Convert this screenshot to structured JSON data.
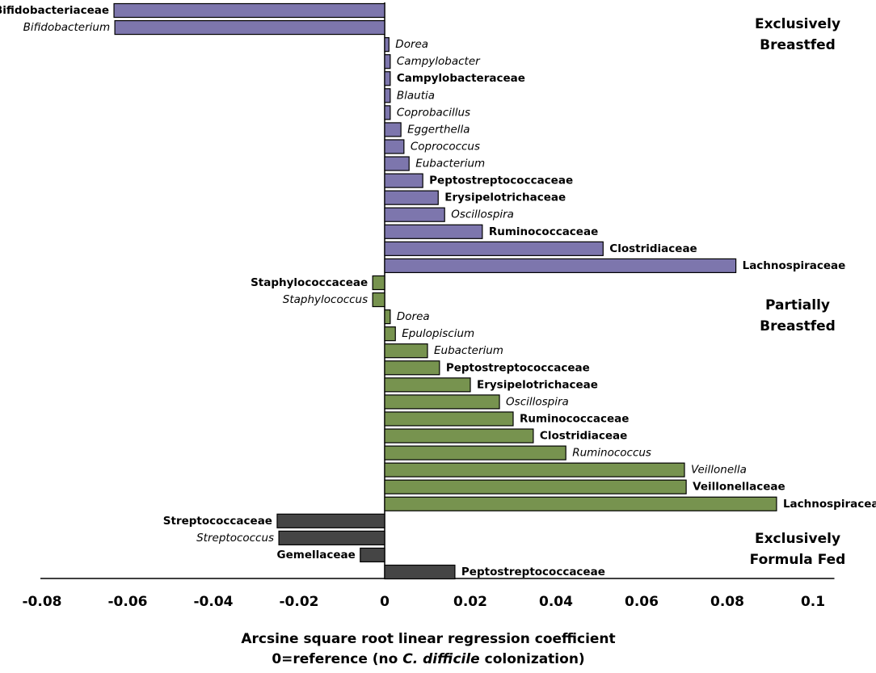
{
  "chart_data": {
    "type": "hbar-groups",
    "xlim": [
      -0.08,
      0.105
    ],
    "xticks": [
      -0.08,
      -0.06,
      -0.04,
      -0.02,
      0,
      0.02,
      0.04,
      0.06,
      0.08,
      0.1
    ],
    "x_label": [
      "Arcsine square root linear regression coefficient",
      [
        "0=reference (no ",
        "C. difficile",
        " colonization)"
      ]
    ],
    "series": [
      {
        "label": [
          "Exclusively",
          "Breastfed"
        ],
        "color": "#7d76ad",
        "categories": [
          "Bifidobacteriaceae",
          "Bifidobacterium",
          "Dorea",
          "Campylobacter",
          "Campylobacteraceae",
          "Blautia",
          "Coprobacillus",
          "Eggerthella",
          "Coprococcus",
          "Eubacterium",
          "Peptostreptococcaceae",
          "Erysipelotrichaceae",
          "Oscillospira",
          "Ruminococcaceae",
          "Clostridiaceae",
          "Lachnospiraceae"
        ],
        "values": [
          -0.0632,
          -0.063,
          0.001,
          0.0013,
          0.0013,
          0.0013,
          0.0013,
          0.0038,
          0.0045,
          0.0057,
          0.0089,
          0.0125,
          0.014,
          0.0228,
          0.051,
          0.082
        ]
      },
      {
        "label": [
          "Partially",
          "Breastfed"
        ],
        "color": "#77934f",
        "categories": [
          "Staphylococcaceae",
          "Staphylococcus",
          "Dorea",
          "Epulopiscium",
          "Eubacterium",
          "Peptostreptococcaceae",
          "Erysipelotrichaceae",
          "Oscillospira",
          "Ruminococcaceae",
          "Clostridiaceae",
          "Ruminococcus",
          "Veillonella",
          "Veillonellaceae",
          "Lachnospiraceae"
        ],
        "values": [
          -0.0028,
          -0.0028,
          0.0013,
          0.0025,
          0.01,
          0.0128,
          0.02,
          0.0268,
          0.03,
          0.0347,
          0.0423,
          0.07,
          0.0704,
          0.0915
        ]
      },
      {
        "label": [
          "Exclusively",
          "Formula Fed"
        ],
        "color": "#454545",
        "categories": [
          "Streptococcaceae",
          "Streptococcus",
          "Gemellaceae",
          "Peptostreptococcaceae"
        ],
        "values": [
          -0.0251,
          -0.0247,
          -0.0057,
          0.0164
        ]
      }
    ]
  }
}
